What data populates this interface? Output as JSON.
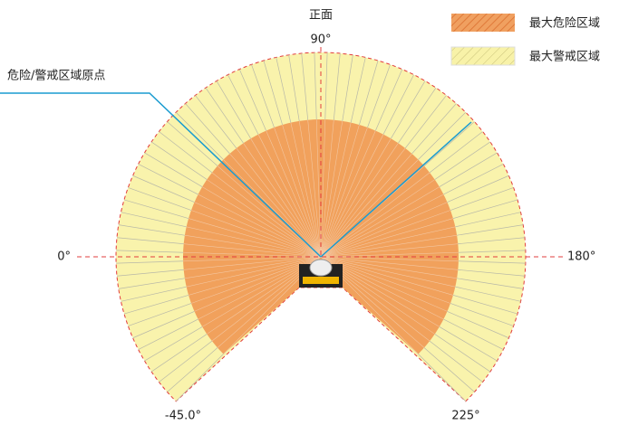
{
  "header": {
    "front": "正面"
  },
  "angles": {
    "top": "90°",
    "left": "0°",
    "right": "180°",
    "bottom_left": "-45.0°",
    "bottom_right": "225°"
  },
  "callout": "危险/警戒区域原点",
  "legend": [
    {
      "label": "最大危险区域"
    },
    {
      "label": "最大警戒区域"
    }
  ]
}
